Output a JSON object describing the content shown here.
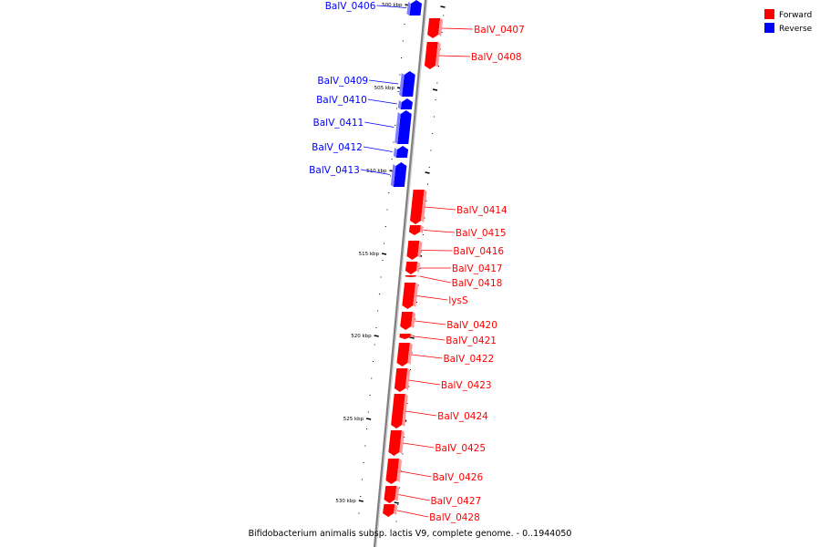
{
  "colors": {
    "forward": "#ff0000",
    "forward_shade": "#ff9999",
    "reverse": "#0000ff",
    "reverse_shade": "#8080ff",
    "backbone": "#808080",
    "text": "#000000"
  },
  "legend": [
    {
      "label": "Forward",
      "color": "#ff0000"
    },
    {
      "label": "Reverse",
      "color": "#0000ff"
    }
  ],
  "caption": "Bifidobacterium animalis subsp. lactis V9, complete genome. - 0..1944050",
  "ticks": [
    "500 kbp",
    "505 kbp",
    "510 kbp",
    "515 kbp",
    "520 kbp",
    "525 kbp",
    "530 kbp"
  ],
  "genes": [
    {
      "label": "BalV_0406",
      "strand": "reverse"
    },
    {
      "label": "BalV_0407",
      "strand": "forward"
    },
    {
      "label": "BalV_0408",
      "strand": "forward"
    },
    {
      "label": "BalV_0409",
      "strand": "reverse"
    },
    {
      "label": "BalV_0410",
      "strand": "reverse"
    },
    {
      "label": "BalV_0411",
      "strand": "reverse"
    },
    {
      "label": "BalV_0412",
      "strand": "reverse"
    },
    {
      "label": "BalV_0413",
      "strand": "reverse"
    },
    {
      "label": "BalV_0414",
      "strand": "forward"
    },
    {
      "label": "BalV_0415",
      "strand": "forward"
    },
    {
      "label": "BalV_0416",
      "strand": "forward"
    },
    {
      "label": "BalV_0417",
      "strand": "forward"
    },
    {
      "label": "BalV_0418",
      "strand": "forward"
    },
    {
      "label": "lysS",
      "strand": "forward"
    },
    {
      "label": "BalV_0420",
      "strand": "forward"
    },
    {
      "label": "BalV_0421",
      "strand": "forward"
    },
    {
      "label": "BalV_0422",
      "strand": "forward"
    },
    {
      "label": "BalV_0423",
      "strand": "forward"
    },
    {
      "label": "BalV_0424",
      "strand": "forward"
    },
    {
      "label": "BalV_0425",
      "strand": "forward"
    },
    {
      "label": "BalV_0426",
      "strand": "forward"
    },
    {
      "label": "BalV_0427",
      "strand": "forward"
    },
    {
      "label": "BalV_0428",
      "strand": "forward"
    }
  ]
}
